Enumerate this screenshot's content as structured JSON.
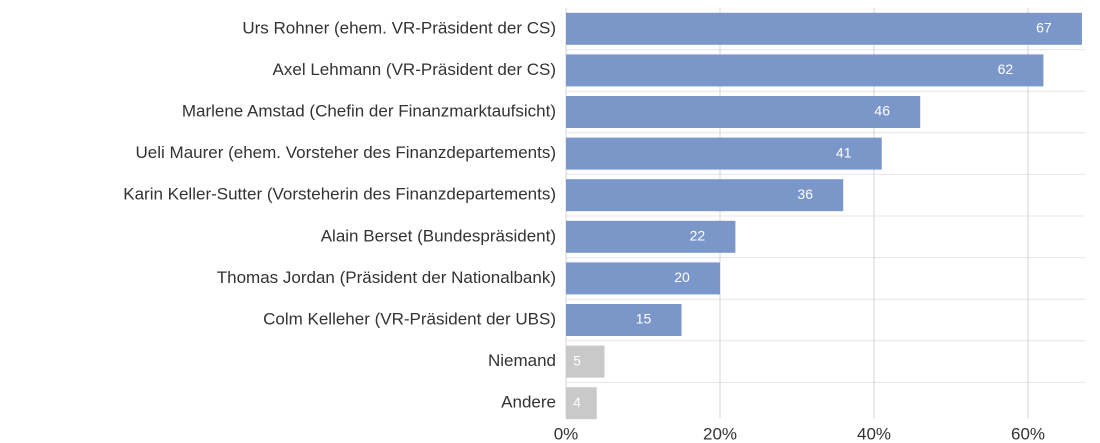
{
  "chart_data": {
    "type": "barh",
    "categories": [
      "Urs Rohner (ehem. VR-Präsident der CS)",
      "Axel Lehmann (VR-Präsident der CS)",
      "Marlene Amstad (Chefin der Finanzmarktaufsicht)",
      "Ueli Maurer (ehem. Vorsteher des Finanzdepartements)",
      "Karin Keller-Sutter (Vorsteherin des Finanzdepartements)",
      "Alain Berset (Bundespräsident)",
      "Thomas Jordan (Präsident der Nationalbank)",
      "Colm Kelleher (VR-Präsident der UBS)",
      "Niemand",
      "Andere"
    ],
    "values": [
      67,
      62,
      46,
      41,
      36,
      22,
      20,
      15,
      5,
      4
    ],
    "colors": [
      "#7b97c9",
      "#7b97c9",
      "#7b97c9",
      "#7b97c9",
      "#7b97c9",
      "#7b97c9",
      "#7b97c9",
      "#7b97c9",
      "#c9c9c9",
      "#c9c9c9"
    ],
    "xlim": [
      0,
      67.4
    ],
    "xticks": [
      {
        "value": 0,
        "label": "0%"
      },
      {
        "value": 20,
        "label": "20%"
      },
      {
        "value": 40,
        "label": "40%"
      },
      {
        "value": 60,
        "label": "60%"
      }
    ],
    "grid": true
  }
}
